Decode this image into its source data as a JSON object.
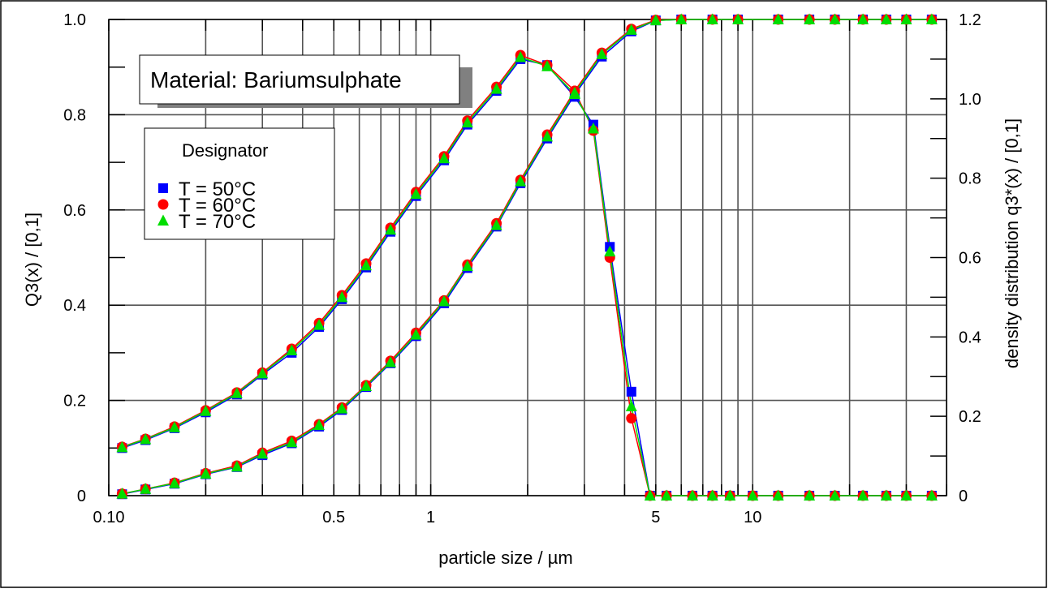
{
  "chart_data": {
    "type": "scatter",
    "xlabel": "particle size / µm",
    "ylabel": "Q3(x) / [0,1]",
    "y2label": "density distribution q3*(x) / [0,1]",
    "x_scale": "log",
    "xlim": [
      0.1,
      40
    ],
    "ylim": [
      0,
      1.0
    ],
    "y2lim": [
      0,
      1.2
    ],
    "x_tick_labels": [
      {
        "value": 0.1,
        "label": "0.10"
      },
      {
        "value": 0.5,
        "label": "0.5"
      },
      {
        "value": 1,
        "label": "1"
      },
      {
        "value": 5,
        "label": "5"
      },
      {
        "value": 10,
        "label": "10"
      }
    ],
    "y_tick_labels": [
      "0",
      "0.2",
      "0.4",
      "0.6",
      "0.8",
      "1.0"
    ],
    "y2_tick_labels": [
      "0",
      "0.2",
      "0.4",
      "0.6",
      "0.8",
      "1.0",
      "1.2"
    ],
    "grid": true,
    "annotation": "Material: Bariumsulphate",
    "legend": {
      "title": "Designator",
      "placement": "upper-left"
    },
    "x": [
      0.11,
      0.13,
      0.16,
      0.2,
      0.25,
      0.3,
      0.37,
      0.45,
      0.53,
      0.63,
      0.75,
      0.9,
      1.1,
      1.3,
      1.6,
      1.9,
      2.3,
      2.8,
      3.4,
      4.2,
      5.0,
      6.0,
      7.5,
      9.0,
      12.0,
      15.0,
      18.0,
      22.0,
      26.0,
      30.0,
      36.0
    ],
    "x_density": [
      0.11,
      0.13,
      0.16,
      0.2,
      0.25,
      0.3,
      0.37,
      0.45,
      0.53,
      0.63,
      0.75,
      0.9,
      1.1,
      1.3,
      1.6,
      1.9,
      2.3,
      2.8,
      3.2,
      3.6,
      4.2,
      4.8,
      5.4,
      6.5,
      7.5,
      8.5,
      10.0,
      12.0,
      15.0,
      18.0,
      22.0,
      26.0,
      30.0,
      36.0
    ],
    "series": [
      {
        "name": "T = 50°C",
        "color": "#0000ff",
        "marker": "square",
        "cumulative": [
          0.003,
          0.013,
          0.025,
          0.045,
          0.06,
          0.085,
          0.11,
          0.145,
          0.18,
          0.228,
          0.278,
          0.335,
          0.404,
          0.478,
          0.565,
          0.656,
          0.75,
          0.842,
          0.922,
          0.975,
          0.998,
          1.0,
          1.0,
          1.0,
          1.0,
          1.0,
          1.0,
          1.0,
          1.0,
          1.0,
          1.0
        ],
        "density": [
          0.12,
          0.14,
          0.17,
          0.21,
          0.255,
          0.305,
          0.36,
          0.425,
          0.495,
          0.575,
          0.665,
          0.755,
          0.845,
          0.935,
          1.02,
          1.1,
          1.085,
          1.005,
          0.935,
          0.627,
          0.262,
          0.0,
          0.0,
          0.0,
          0.0,
          0.0,
          0.0,
          0.0,
          0.0,
          0.0,
          0.0,
          0.0,
          0.0,
          0.0
        ]
      },
      {
        "name": "T = 60°C",
        "color": "#ff0000",
        "marker": "circle",
        "cumulative": [
          0.004,
          0.014,
          0.027,
          0.047,
          0.063,
          0.09,
          0.115,
          0.15,
          0.185,
          0.232,
          0.283,
          0.342,
          0.41,
          0.485,
          0.572,
          0.663,
          0.758,
          0.85,
          0.93,
          0.98,
          0.999,
          1.0,
          1.0,
          1.0,
          1.0,
          1.0,
          1.0,
          1.0,
          1.0,
          1.0,
          1.0
        ],
        "density": [
          0.123,
          0.143,
          0.174,
          0.215,
          0.26,
          0.31,
          0.37,
          0.435,
          0.505,
          0.585,
          0.675,
          0.765,
          0.855,
          0.945,
          1.03,
          1.11,
          1.085,
          1.02,
          0.92,
          0.6,
          0.195,
          0.0,
          0.0,
          0.0,
          0.0,
          0.0,
          0.0,
          0.0,
          0.0,
          0.0,
          0.0,
          0.0,
          0.0,
          0.0
        ]
      },
      {
        "name": "T = 70°C",
        "color": "#00dd00",
        "marker": "triangle",
        "cumulative": [
          0.004,
          0.014,
          0.026,
          0.046,
          0.061,
          0.088,
          0.112,
          0.148,
          0.183,
          0.23,
          0.28,
          0.338,
          0.408,
          0.482,
          0.568,
          0.66,
          0.754,
          0.846,
          0.927,
          0.978,
          0.998,
          1.0,
          1.0,
          1.0,
          1.0,
          1.0,
          1.0,
          1.0,
          1.0,
          1.0,
          1.0
        ],
        "density": [
          0.122,
          0.142,
          0.172,
          0.213,
          0.258,
          0.308,
          0.366,
          0.43,
          0.5,
          0.58,
          0.67,
          0.76,
          0.85,
          0.94,
          1.025,
          1.105,
          1.082,
          1.012,
          0.925,
          0.615,
          0.225,
          0.0,
          0.0,
          0.0,
          0.0,
          0.0,
          0.0,
          0.0,
          0.0,
          0.0,
          0.0,
          0.0,
          0.0,
          0.0
        ]
      }
    ]
  }
}
